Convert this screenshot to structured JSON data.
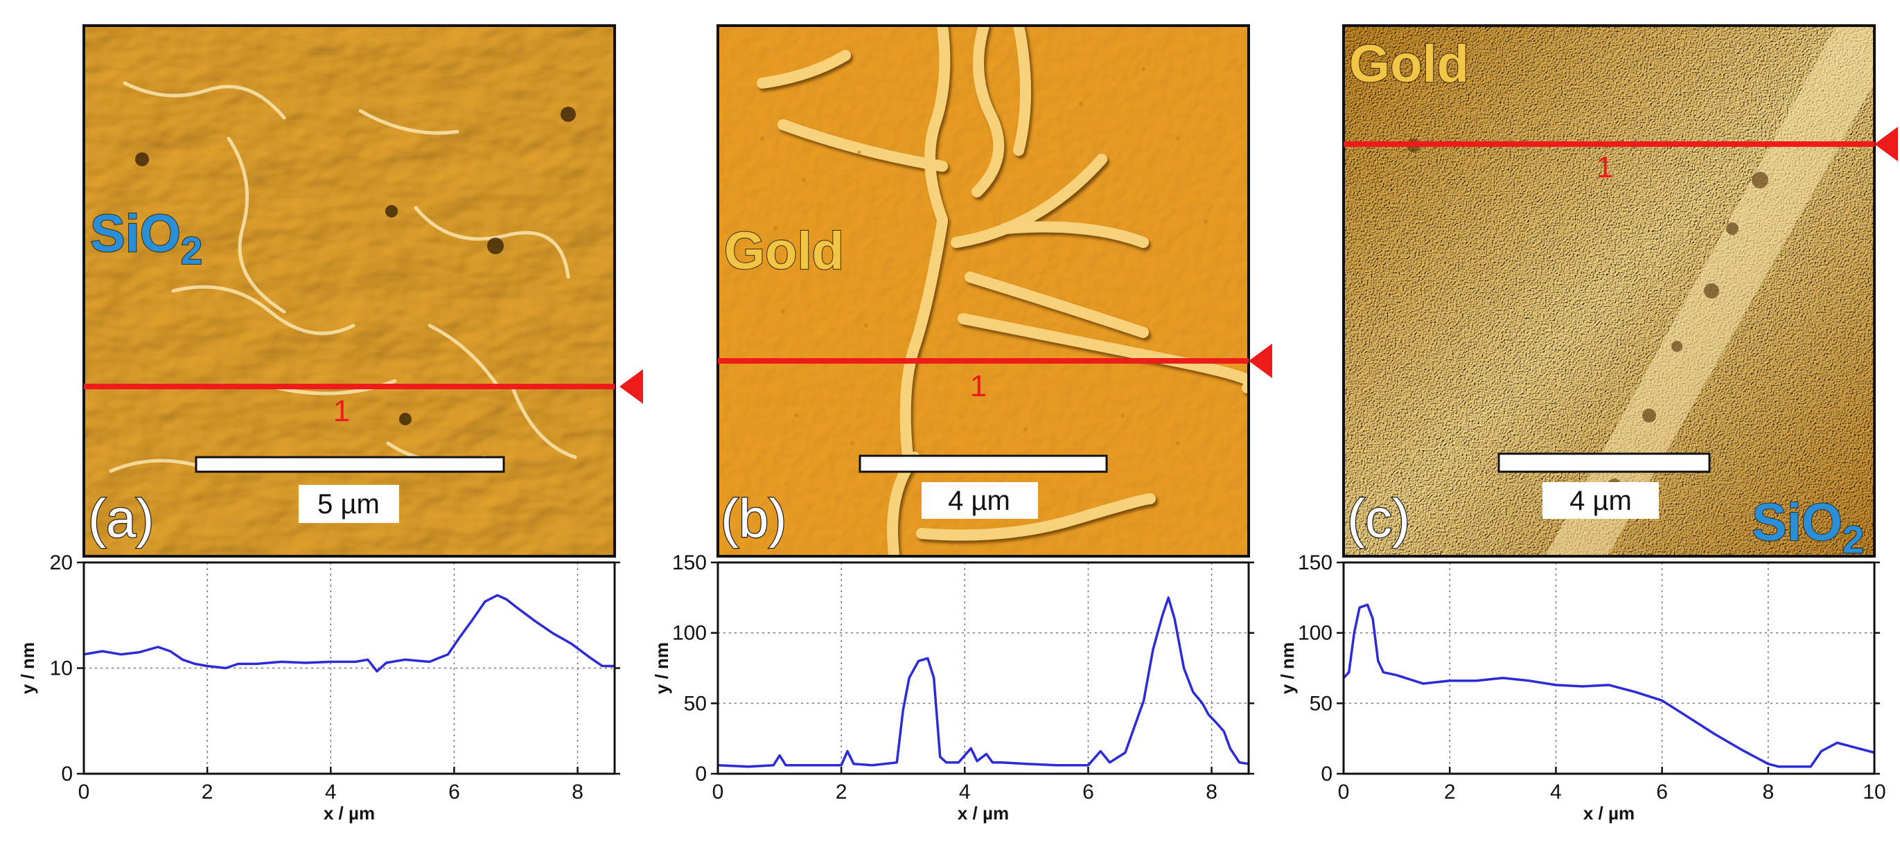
{
  "panels": [
    {
      "id": "a",
      "letter": "(a)",
      "labels": [
        {
          "main": "SiO",
          "sub": "2",
          "color": "#2a8fd6"
        }
      ],
      "scalebar_text": "5 µm",
      "profile_marker": "1",
      "image_style": "sio2"
    },
    {
      "id": "b",
      "letter": "(b)",
      "labels": [
        {
          "main": "Gold",
          "sub": "",
          "color": "#f3c545"
        }
      ],
      "scalebar_text": "4 µm",
      "profile_marker": "1",
      "image_style": "gold"
    },
    {
      "id": "c",
      "letter": "(c)",
      "labels": [
        {
          "main": "Gold",
          "sub": "",
          "color": "#f3c545"
        },
        {
          "main": "SiO",
          "sub": "2",
          "color": "#2a8fd6"
        }
      ],
      "scalebar_text": "4 µm",
      "profile_marker": "1",
      "image_style": "mixed"
    }
  ],
  "colors": {
    "profile_line": "#ee1b1b",
    "curve": "#2b2bd8",
    "afm_base": "#e0a02c"
  },
  "chart_data": [
    {
      "type": "line",
      "title": "",
      "xlabel": "x / µm",
      "ylabel": "y / nm",
      "xlim": [
        0,
        8.6
      ],
      "ylim": [
        0,
        20
      ],
      "xticks": [
        0,
        2,
        4,
        6,
        8
      ],
      "yticks": [
        0,
        10,
        20
      ],
      "grid": true,
      "series": [
        {
          "name": "profile 1",
          "x": [
            0,
            0.3,
            0.6,
            0.9,
            1.2,
            1.4,
            1.6,
            1.8,
            2.0,
            2.3,
            2.5,
            2.8,
            3.2,
            3.6,
            4.0,
            4.4,
            4.6,
            4.75,
            4.9,
            5.2,
            5.6,
            5.9,
            6.1,
            6.3,
            6.5,
            6.7,
            6.85,
            7.0,
            7.3,
            7.6,
            7.9,
            8.2,
            8.4,
            8.6
          ],
          "y": [
            11.3,
            11.6,
            11.3,
            11.5,
            12.0,
            11.6,
            10.8,
            10.4,
            10.2,
            10.0,
            10.4,
            10.4,
            10.6,
            10.5,
            10.6,
            10.6,
            10.8,
            9.7,
            10.5,
            10.8,
            10.6,
            11.3,
            13.0,
            14.6,
            16.3,
            16.9,
            16.5,
            15.8,
            14.5,
            13.3,
            12.3,
            11.0,
            10.2,
            10.2
          ]
        }
      ]
    },
    {
      "type": "line",
      "title": "",
      "xlabel": "x / µm",
      "ylabel": "y / nm",
      "xlim": [
        0,
        8.6
      ],
      "ylim": [
        0,
        150
      ],
      "xticks": [
        0,
        2,
        4,
        6,
        8
      ],
      "yticks": [
        0,
        50,
        100,
        150
      ],
      "grid": true,
      "series": [
        {
          "name": "profile 1",
          "x": [
            0,
            0.5,
            0.9,
            1.0,
            1.1,
            1.5,
            2.0,
            2.1,
            2.2,
            2.5,
            2.9,
            3.0,
            3.1,
            3.25,
            3.4,
            3.5,
            3.6,
            3.7,
            3.9,
            4.1,
            4.2,
            4.35,
            4.45,
            4.6,
            5.0,
            5.5,
            6.0,
            6.2,
            6.35,
            6.6,
            6.9,
            7.05,
            7.2,
            7.3,
            7.4,
            7.55,
            7.7,
            7.85,
            7.95,
            8.1,
            8.2,
            8.3,
            8.45,
            8.6
          ],
          "y": [
            6,
            5,
            6,
            13,
            6,
            6,
            6,
            16,
            7,
            6,
            8,
            45,
            68,
            80,
            82,
            68,
            12,
            8,
            8,
            18,
            9,
            14,
            8,
            8,
            7,
            6,
            6,
            16,
            8,
            15,
            52,
            88,
            112,
            125,
            110,
            75,
            58,
            50,
            42,
            35,
            30,
            18,
            8,
            7
          ]
        }
      ]
    },
    {
      "type": "line",
      "title": "",
      "xlabel": "x / µm",
      "ylabel": "y / nm",
      "xlim": [
        0,
        10
      ],
      "ylim": [
        0,
        150
      ],
      "xticks": [
        0,
        2,
        4,
        6,
        8,
        10
      ],
      "yticks": [
        0,
        50,
        100,
        150
      ],
      "grid": true,
      "series": [
        {
          "name": "profile 1",
          "x": [
            0,
            0.1,
            0.2,
            0.3,
            0.45,
            0.55,
            0.65,
            0.75,
            1.0,
            1.5,
            2.0,
            2.5,
            3.0,
            3.5,
            4.0,
            4.5,
            5.0,
            5.5,
            6.0,
            6.5,
            7.0,
            7.5,
            8.0,
            8.2,
            8.6,
            8.8,
            9.0,
            9.3,
            9.6,
            10.0
          ],
          "y": [
            68,
            72,
            100,
            118,
            120,
            110,
            80,
            72,
            70,
            64,
            66,
            66,
            68,
            66,
            63,
            62,
            63,
            58,
            52,
            40,
            28,
            17,
            7,
            5,
            5,
            5,
            16,
            22,
            19,
            15
          ]
        }
      ]
    }
  ]
}
